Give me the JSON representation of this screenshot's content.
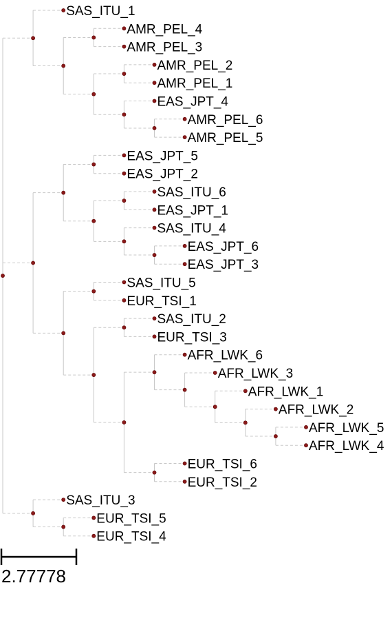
{
  "tree": {
    "children": [
      {
        "children": [
          {
            "label": "SAS_ITU_1"
          },
          {
            "children": [
              {
                "children": [
                  {
                    "label": "AMR_PEL_4"
                  },
                  {
                    "label": "AMR_PEL_3"
                  }
                ]
              },
              {
                "children": [
                  {
                    "children": [
                      {
                        "label": "AMR_PEL_2"
                      },
                      {
                        "label": "AMR_PEL_1"
                      }
                    ]
                  },
                  {
                    "children": [
                      {
                        "label": "EAS_JPT_4"
                      },
                      {
                        "children": [
                          {
                            "label": "AMR_PEL_6"
                          },
                          {
                            "label": "AMR_PEL_5"
                          }
                        ]
                      }
                    ]
                  }
                ]
              }
            ]
          }
        ]
      },
      {
        "children": [
          {
            "children": [
              {
                "children": [
                  {
                    "label": "EAS_JPT_5"
                  },
                  {
                    "label": "EAS_JPT_2"
                  }
                ]
              },
              {
                "children": [
                  {
                    "children": [
                      {
                        "label": "SAS_ITU_6"
                      },
                      {
                        "label": "EAS_JPT_1"
                      }
                    ]
                  },
                  {
                    "children": [
                      {
                        "label": "SAS_ITU_4"
                      },
                      {
                        "children": [
                          {
                            "label": "EAS_JPT_6"
                          },
                          {
                            "label": "EAS_JPT_3"
                          }
                        ]
                      }
                    ]
                  }
                ]
              }
            ]
          },
          {
            "children": [
              {
                "children": [
                  {
                    "label": "SAS_ITU_5"
                  },
                  {
                    "label": "EUR_TSI_1"
                  }
                ]
              },
              {
                "children": [
                  {
                    "children": [
                      {
                        "label": "SAS_ITU_2"
                      },
                      {
                        "label": "EUR_TSI_3"
                      }
                    ]
                  },
                  {
                    "children": [
                      {
                        "children": [
                          {
                            "label": "AFR_LWK_6"
                          },
                          {
                            "children": [
                              {
                                "label": "AFR_LWK_3"
                              },
                              {
                                "children": [
                                  {
                                    "label": "AFR_LWK_1"
                                  },
                                  {
                                    "children": [
                                      {
                                        "label": "AFR_LWK_2"
                                      },
                                      {
                                        "children": [
                                          {
                                            "label": "AFR_LWK_5"
                                          },
                                          {
                                            "label": "AFR_LWK_4"
                                          }
                                        ]
                                      }
                                    ]
                                  }
                                ]
                              }
                            ]
                          }
                        ]
                      },
                      {
                        "children": [
                          {
                            "label": "EUR_TSI_6"
                          },
                          {
                            "label": "EUR_TSI_2"
                          }
                        ]
                      }
                    ]
                  }
                ]
              }
            ]
          }
        ]
      },
      {
        "children": [
          {
            "label": "SAS_ITU_3"
          },
          {
            "children": [
              {
                "label": "EUR_TSI_5"
              },
              {
                "label": "EUR_TSI_4"
              }
            ]
          }
        ]
      }
    ]
  },
  "scale": {
    "label": "2.77778"
  },
  "colors": {
    "node": "#8b1a1a",
    "edge": "#c8c8c8"
  }
}
